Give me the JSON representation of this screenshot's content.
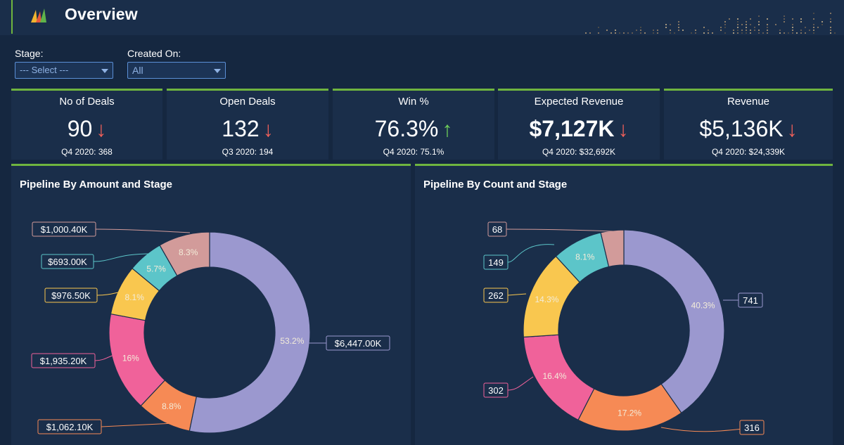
{
  "header": {
    "title": "Overview"
  },
  "filters": {
    "stage": {
      "label": "Stage:",
      "value": "--- Select ---"
    },
    "created_on": {
      "label": "Created On:",
      "value": "All"
    }
  },
  "kpis": [
    {
      "title": "No of Deals",
      "value": "90",
      "trend": "down",
      "arrow": "↓",
      "sub": "Q4 2020: 368"
    },
    {
      "title": "Open Deals",
      "value": "132",
      "trend": "down",
      "arrow": "↓",
      "sub": "Q3 2020: 194"
    },
    {
      "title": "Win %",
      "value": "76.3%",
      "trend": "up",
      "arrow": "↑",
      "sub": "Q4 2020: 75.1%"
    },
    {
      "title": "Expected Revenue",
      "value": "$7,127K",
      "trend": "down",
      "arrow": "↓",
      "sub": "Q4 2020: $32,692K"
    },
    {
      "title": "Revenue",
      "value": "$5,136K",
      "trend": "down",
      "arrow": "↓",
      "sub": "Q4 2020: $24,339K"
    }
  ],
  "colors": {
    "accent": "#6fb43f",
    "background": "#152740",
    "card": "#1a2e4a",
    "down": "#f0605a",
    "up": "#6fcf5a"
  },
  "chart_data": [
    {
      "type": "pie",
      "title": "Pipeline By Amount and Stage",
      "slices": [
        {
          "label": "$6,447.00K",
          "value": 6447.0,
          "pct": "53.2%",
          "color": "#9b98cf"
        },
        {
          "label": "$1,062.10K",
          "value": 1062.1,
          "pct": "8.8%",
          "color": "#f68a55"
        },
        {
          "label": "$1,935.20K",
          "value": 1935.2,
          "pct": "16%",
          "color": "#f0629a"
        },
        {
          "label": "$976.50K",
          "value": 976.5,
          "pct": "8.1%",
          "color": "#f9c74f"
        },
        {
          "label": "$693.00K",
          "value": 693.0,
          "pct": "5.7%",
          "color": "#5cc5c9"
        },
        {
          "label": "$1,000.40K",
          "value": 1000.4,
          "pct": "8.3%",
          "color": "#d29b9a"
        }
      ]
    },
    {
      "type": "pie",
      "title": "Pipeline By Count and Stage",
      "slices": [
        {
          "label": "741",
          "value": 741,
          "pct": "40.3%",
          "color": "#9b98cf"
        },
        {
          "label": "316",
          "value": 316,
          "pct": "17.2%",
          "color": "#f68a55"
        },
        {
          "label": "302",
          "value": 302,
          "pct": "16.4%",
          "color": "#f0629a"
        },
        {
          "label": "262",
          "value": 262,
          "pct": "14.3%",
          "color": "#f9c74f"
        },
        {
          "label": "149",
          "value": 149,
          "pct": "8.1%",
          "color": "#5cc5c9"
        },
        {
          "label": "68",
          "value": 68,
          "pct": "",
          "color": "#d29b9a"
        }
      ]
    }
  ]
}
